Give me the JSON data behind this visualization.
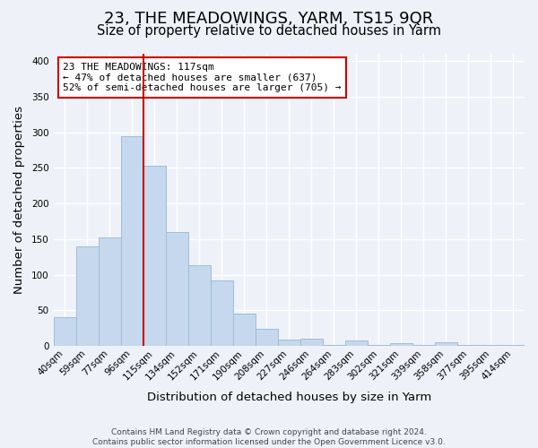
{
  "title": "23, THE MEADOWINGS, YARM, TS15 9QR",
  "subtitle": "Size of property relative to detached houses in Yarm",
  "xlabel": "Distribution of detached houses by size in Yarm",
  "ylabel": "Number of detached properties",
  "categories": [
    "40sqm",
    "59sqm",
    "77sqm",
    "96sqm",
    "115sqm",
    "134sqm",
    "152sqm",
    "171sqm",
    "190sqm",
    "208sqm",
    "227sqm",
    "246sqm",
    "264sqm",
    "283sqm",
    "302sqm",
    "321sqm",
    "339sqm",
    "358sqm",
    "377sqm",
    "395sqm",
    "414sqm"
  ],
  "values": [
    41,
    140,
    153,
    295,
    253,
    160,
    113,
    92,
    46,
    24,
    9,
    11,
    2,
    8,
    2,
    4,
    2,
    5,
    2,
    2,
    2
  ],
  "bar_color": "#c5d8ed",
  "bar_edge_color": "#a0bcd8",
  "vline_color": "#cc0000",
  "ylim": [
    0,
    410
  ],
  "yticks": [
    0,
    50,
    100,
    150,
    200,
    250,
    300,
    350,
    400
  ],
  "annotation_title": "23 THE MEADOWINGS: 117sqm",
  "annotation_line1": "← 47% of detached houses are smaller (637)",
  "annotation_line2": "52% of semi-detached houses are larger (705) →",
  "annotation_box_color": "#ffffff",
  "annotation_box_edge": "#cc0000",
  "footer_line1": "Contains HM Land Registry data © Crown copyright and database right 2024.",
  "footer_line2": "Contains public sector information licensed under the Open Government Licence v3.0.",
  "background_color": "#eef2f8",
  "grid_color": "#ffffff",
  "title_fontsize": 13,
  "subtitle_fontsize": 10.5,
  "axis_label_fontsize": 9.5,
  "tick_fontsize": 7.5,
  "footer_fontsize": 6.5
}
